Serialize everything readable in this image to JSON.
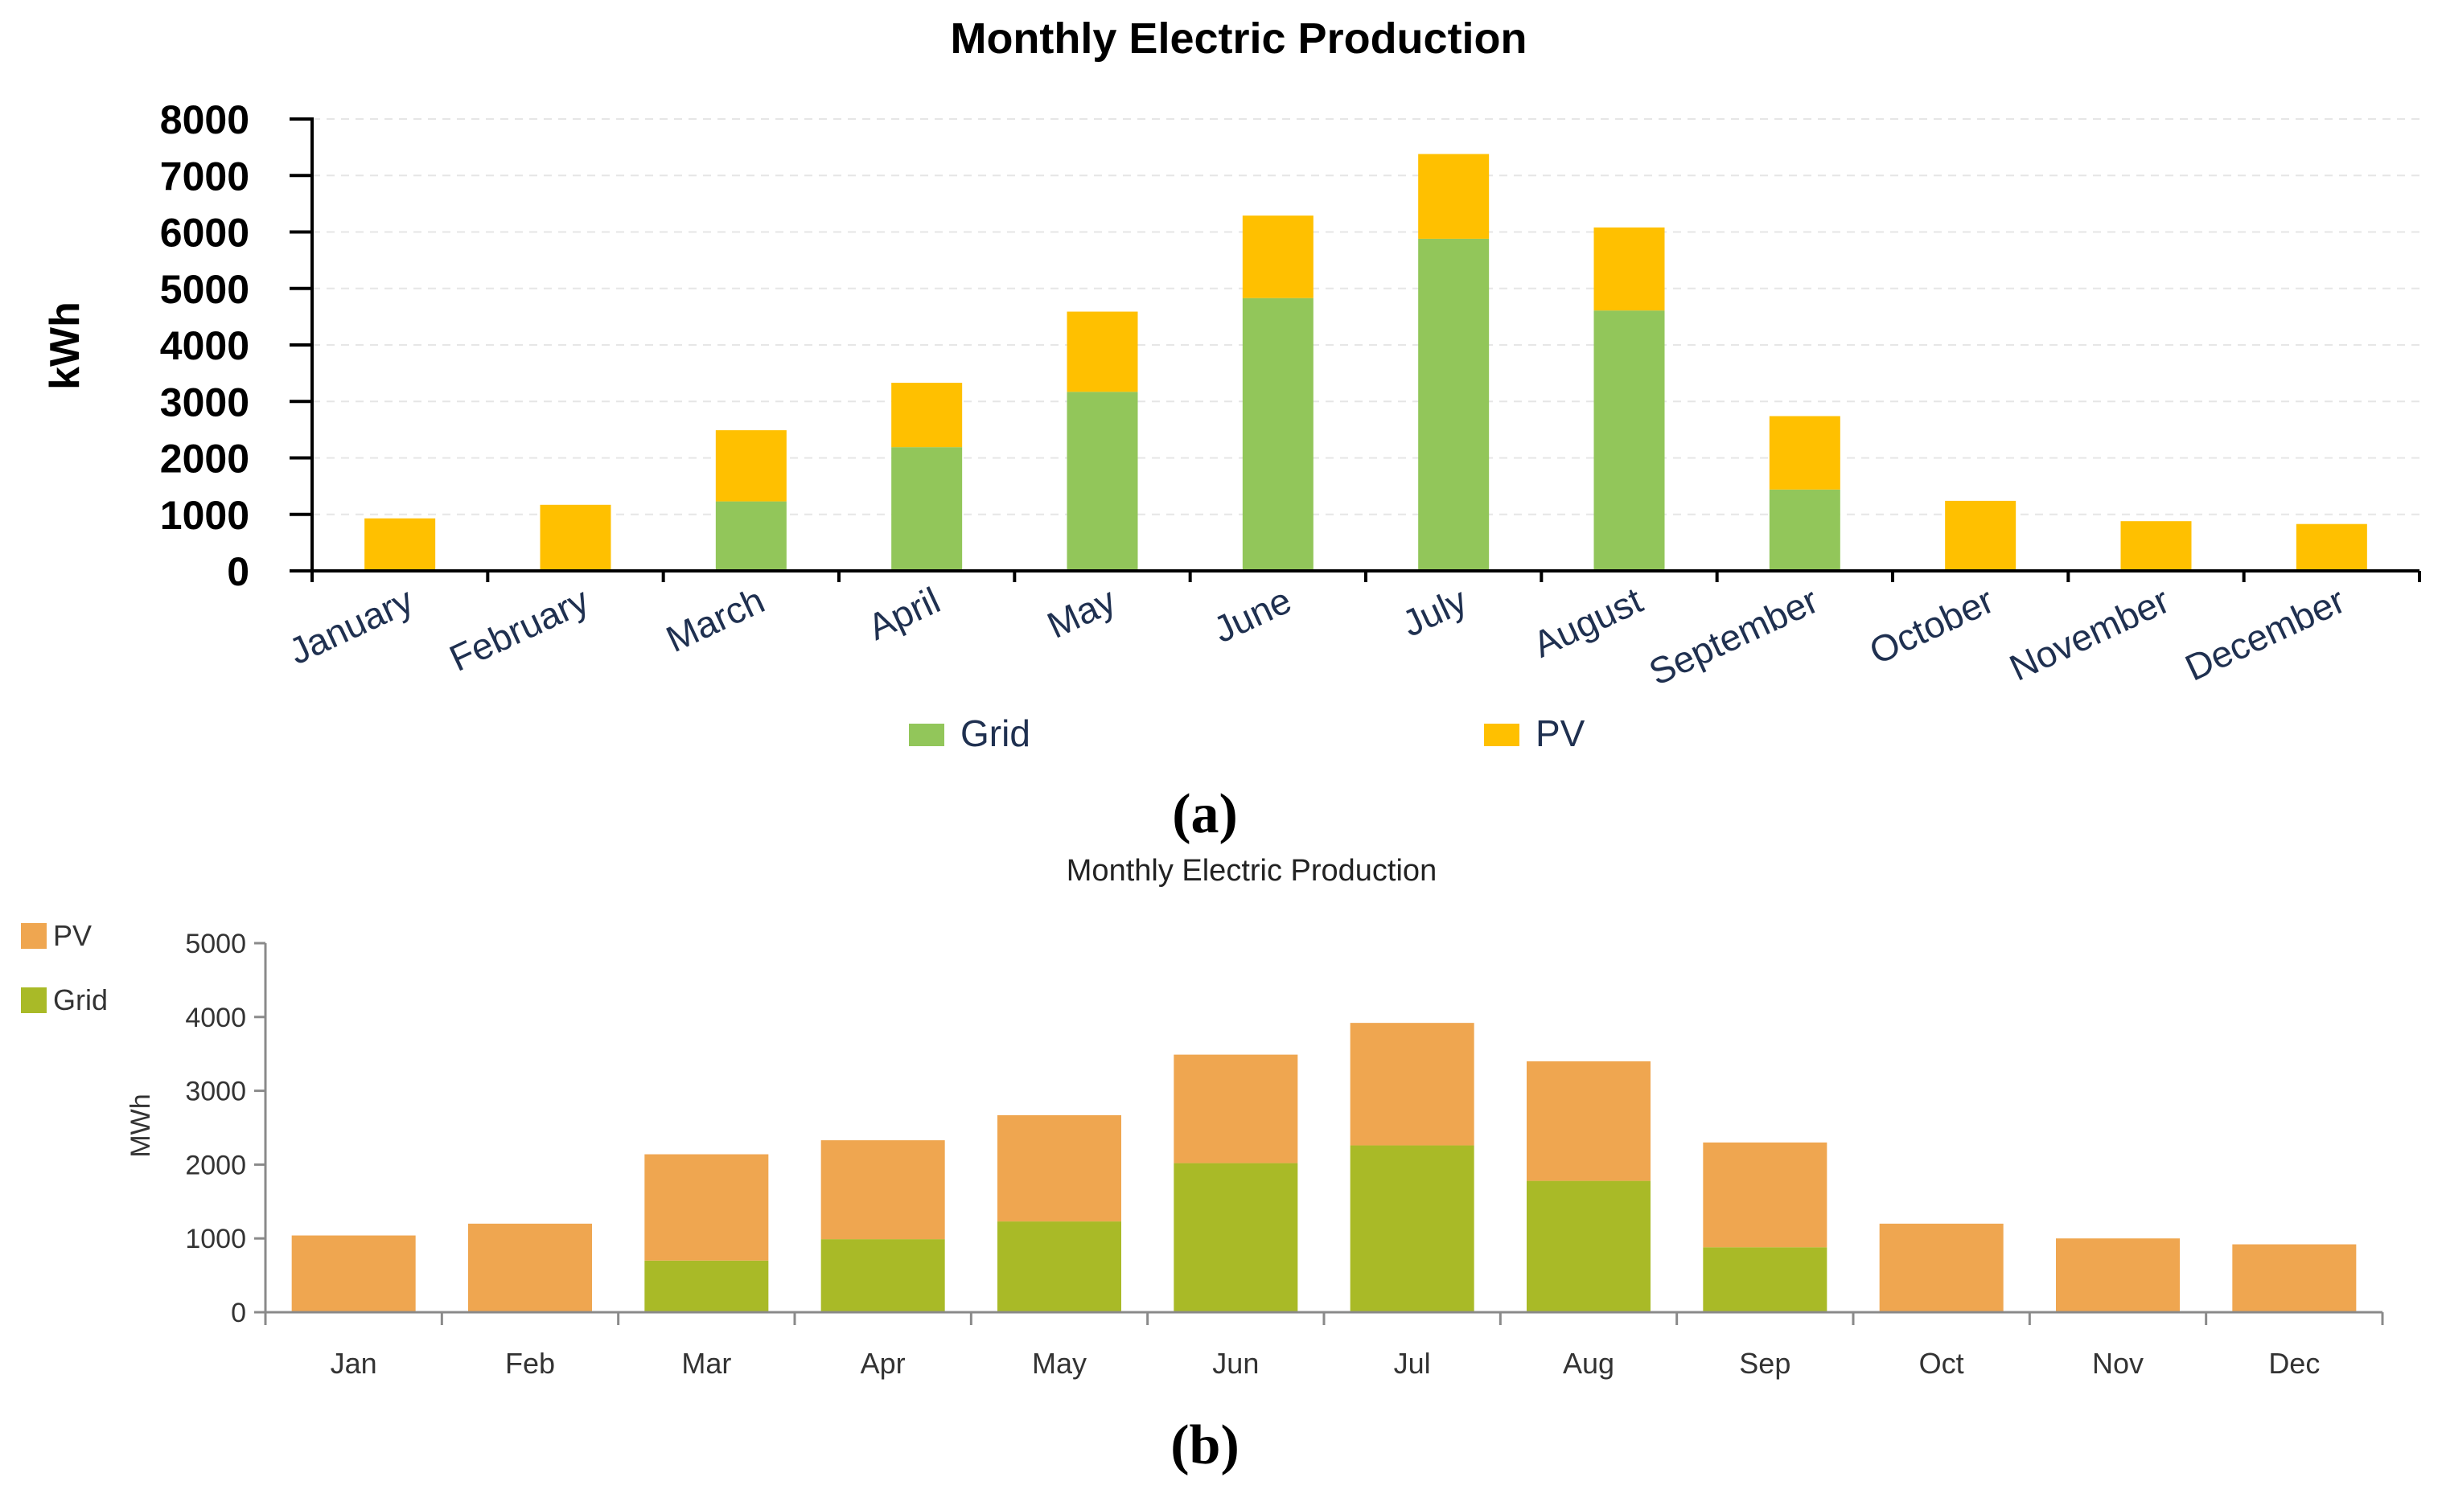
{
  "chart_data": [
    {
      "panel": "(a)",
      "type": "bar",
      "stacked": true,
      "title": "Monthly Electric Production",
      "xlabel": "",
      "ylabel": "kWh",
      "ylim": [
        0,
        8000
      ],
      "yticks": [
        0,
        1000,
        2000,
        3000,
        4000,
        5000,
        6000,
        7000,
        8000
      ],
      "grid": true,
      "legend_position": "bottom",
      "categories": [
        "January",
        "February",
        "March",
        "April",
        "May",
        "June",
        "July",
        "August",
        "September",
        "October",
        "November",
        "December"
      ],
      "series": [
        {
          "name": "Grid",
          "color": "#92C65A",
          "values": [
            0,
            0,
            1230,
            2190,
            3170,
            4830,
            5880,
            4610,
            1440,
            0,
            0,
            0
          ]
        },
        {
          "name": "PV",
          "color": "#FFC000",
          "values": [
            930,
            1170,
            1260,
            1140,
            1420,
            1460,
            1500,
            1470,
            1300,
            1240,
            880,
            830
          ]
        }
      ]
    },
    {
      "panel": "(b)",
      "type": "bar",
      "stacked": true,
      "title": "Monthly Electric Production",
      "xlabel": "",
      "ylabel": "MWh",
      "ylim": [
        0,
        5000
      ],
      "yticks": [
        0,
        1000,
        2000,
        3000,
        4000,
        5000
      ],
      "grid": false,
      "legend_position": "top-left",
      "categories": [
        "Jan",
        "Feb",
        "Mar",
        "Apr",
        "May",
        "Jun",
        "Jul",
        "Aug",
        "Sep",
        "Oct",
        "Nov",
        "Dec"
      ],
      "series": [
        {
          "name": "Grid",
          "color": "#A9BA27",
          "values": [
            0,
            0,
            700,
            990,
            1230,
            2020,
            2260,
            1780,
            880,
            0,
            0,
            0
          ]
        },
        {
          "name": "PV",
          "color": "#EFA650",
          "values": [
            1040,
            1200,
            1440,
            1340,
            1440,
            1470,
            1660,
            1620,
            1420,
            1200,
            1000,
            920
          ]
        }
      ]
    }
  ],
  "captions": {
    "a": "(a)",
    "b": "(b)"
  }
}
